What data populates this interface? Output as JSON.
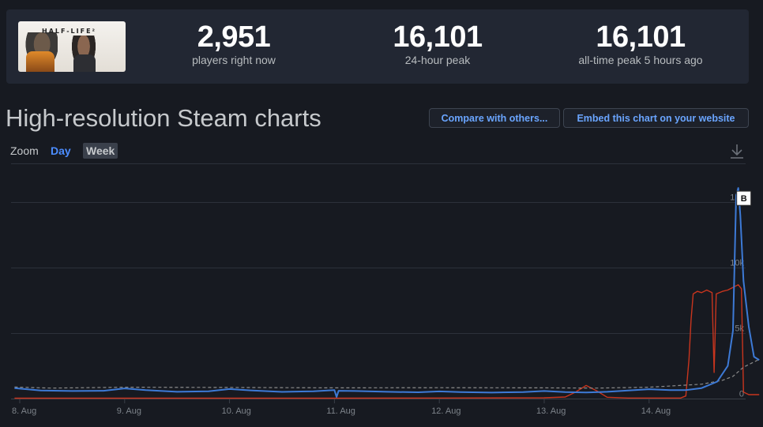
{
  "stats": {
    "game_logo_text": "HALF-LIFE²",
    "players_now_value": "2,951",
    "players_now_label": "players right now",
    "peak_24h_value": "16,101",
    "peak_24h_label": "24-hour peak",
    "all_time_value": "16,101",
    "all_time_label": "all-time peak 5 hours ago"
  },
  "title": "High-resolution Steam charts",
  "buttons": {
    "compare": "Compare with others...",
    "embed": "Embed this chart on your website"
  },
  "zoom": {
    "label": "Zoom",
    "day": "Day",
    "week": "Week",
    "selected": "Week"
  },
  "icons": {
    "download": "download-icon"
  },
  "colors": {
    "players_line": "#3d7ad6",
    "secondary_line": "#c8351e",
    "average_line": "#8b8b8b",
    "accent": "#4c8dff"
  },
  "chart_data": {
    "type": "line",
    "x_labels": [
      "8. Aug",
      "9. Aug",
      "10. Aug",
      "11. Aug",
      "12. Aug",
      "13. Aug",
      "14. Aug"
    ],
    "y_ticks": [
      "0",
      "5k",
      "10k",
      "15k"
    ],
    "ylim": [
      0,
      17500
    ],
    "x_range_days": [
      0,
      7
    ],
    "flag_label": "B",
    "grid": true,
    "series": [
      {
        "key": "players",
        "points": [
          [
            -0.05,
            800
          ],
          [
            0.2,
            620
          ],
          [
            0.5,
            580
          ],
          [
            0.8,
            600
          ],
          [
            1.0,
            780
          ],
          [
            1.2,
            650
          ],
          [
            1.5,
            520
          ],
          [
            1.8,
            560
          ],
          [
            2.0,
            730
          ],
          [
            2.2,
            630
          ],
          [
            2.5,
            510
          ],
          [
            2.8,
            560
          ],
          [
            3.0,
            650
          ],
          [
            3.02,
            120
          ],
          [
            3.04,
            600
          ],
          [
            3.2,
            580
          ],
          [
            3.5,
            520
          ],
          [
            3.8,
            480
          ],
          [
            4.0,
            550
          ],
          [
            4.2,
            500
          ],
          [
            4.5,
            460
          ],
          [
            4.8,
            500
          ],
          [
            5.0,
            580
          ],
          [
            5.2,
            500
          ],
          [
            5.4,
            470
          ],
          [
            5.6,
            520
          ],
          [
            5.8,
            620
          ],
          [
            6.0,
            720
          ],
          [
            6.2,
            650
          ],
          [
            6.35,
            650
          ],
          [
            6.5,
            800
          ],
          [
            6.65,
            1300
          ],
          [
            6.75,
            2500
          ],
          [
            6.8,
            5200
          ],
          [
            6.83,
            15500
          ],
          [
            6.85,
            16101
          ],
          [
            6.87,
            14000
          ],
          [
            6.9,
            9000
          ],
          [
            6.95,
            5500
          ],
          [
            7.0,
            3200
          ],
          [
            7.05,
            2951
          ]
        ]
      },
      {
        "key": "secondary",
        "points": [
          [
            -0.05,
            30
          ],
          [
            1.0,
            30
          ],
          [
            2.0,
            30
          ],
          [
            3.0,
            30
          ],
          [
            4.0,
            40
          ],
          [
            5.0,
            60
          ],
          [
            5.2,
            120
          ],
          [
            5.3,
            500
          ],
          [
            5.4,
            1000
          ],
          [
            5.5,
            600
          ],
          [
            5.6,
            100
          ],
          [
            5.8,
            40
          ],
          [
            6.0,
            40
          ],
          [
            6.3,
            40
          ],
          [
            6.35,
            200
          ],
          [
            6.38,
            3000
          ],
          [
            6.4,
            6000
          ],
          [
            6.42,
            8000
          ],
          [
            6.46,
            8200
          ],
          [
            6.5,
            8100
          ],
          [
            6.55,
            8300
          ],
          [
            6.6,
            8100
          ],
          [
            6.62,
            2000
          ],
          [
            6.64,
            8000
          ],
          [
            6.7,
            8200
          ],
          [
            6.75,
            8300
          ],
          [
            6.8,
            8500
          ],
          [
            6.85,
            8700
          ],
          [
            6.88,
            8400
          ],
          [
            6.9,
            500
          ],
          [
            6.95,
            300
          ],
          [
            7.0,
            300
          ],
          [
            7.05,
            300
          ]
        ]
      },
      {
        "key": "average",
        "points": [
          [
            -0.05,
            880
          ],
          [
            0.3,
            800
          ],
          [
            1.0,
            870
          ],
          [
            2.0,
            850
          ],
          [
            3.0,
            820
          ],
          [
            4.0,
            830
          ],
          [
            5.0,
            820
          ],
          [
            5.5,
            800
          ],
          [
            6.0,
            870
          ],
          [
            6.5,
            1100
          ],
          [
            6.7,
            1400
          ],
          [
            6.8,
            1700
          ],
          [
            6.9,
            2400
          ],
          [
            7.0,
            2800
          ],
          [
            7.05,
            3000
          ]
        ]
      }
    ]
  }
}
